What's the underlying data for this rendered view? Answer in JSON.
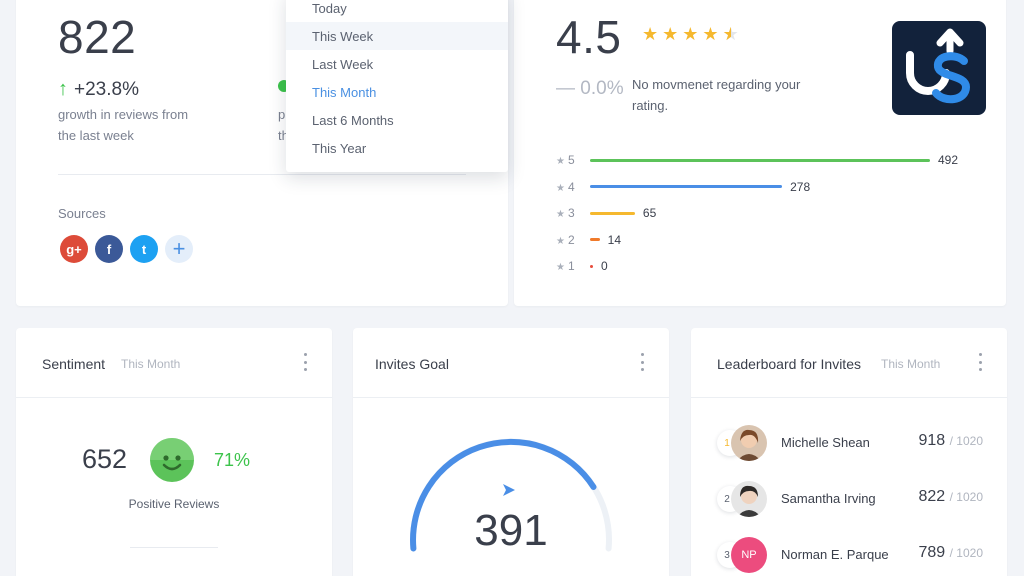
{
  "reviews": {
    "count": "822",
    "growth": "+23.8%",
    "growth_desc_line1": "growth in reviews from",
    "growth_desc_line2": "the last week",
    "sources_label": "Sources",
    "sources": [
      {
        "name": "google-plus",
        "glyph": "g+",
        "color": "#dd4b39"
      },
      {
        "name": "facebook",
        "glyph": "f",
        "color": "#3b5998"
      },
      {
        "name": "twitter",
        "glyph": "t",
        "color": "#1da1f2"
      }
    ],
    "add_source": "+"
  },
  "period_dropdown": {
    "options": [
      "Today",
      "This Week",
      "Last Week",
      "This Month",
      "Last 6 Months",
      "This Year"
    ],
    "hovered": "This Week",
    "selected": "This Month"
  },
  "rating": {
    "value": "4.5",
    "stars": 4.5,
    "change": "— 0.0%",
    "desc_line1": "No movmenet regarding your",
    "desc_line2": "rating.",
    "breakdown": [
      {
        "stars": "5",
        "count": "492",
        "value": 492,
        "color": "#5cc35a"
      },
      {
        "stars": "4",
        "count": "278",
        "value": 278,
        "color": "#4a8ee6"
      },
      {
        "stars": "3",
        "count": "65",
        "value": 65,
        "color": "#f5b82e"
      },
      {
        "stars": "2",
        "count": "14",
        "value": 14,
        "color": "#f07a2b"
      },
      {
        "stars": "1",
        "count": "0",
        "value": 0,
        "color": "#e74c3c"
      }
    ]
  },
  "sentiment": {
    "title": "Sentiment",
    "period": "This Month",
    "positive_count": "652",
    "positive_percent": "71%",
    "label": "Positive Reviews"
  },
  "invites": {
    "title": "Invites Goal",
    "value": "391",
    "goal": 1000
  },
  "leaderboard": {
    "title": "Leaderboard for Invites",
    "period": "This Month",
    "rows": [
      {
        "rank": "1",
        "name": "Michelle Shean",
        "score": "918",
        "of": "/ 1020",
        "initials": ""
      },
      {
        "rank": "2",
        "name": "Samantha Irving",
        "score": "822",
        "of": "/ 1020",
        "initials": ""
      },
      {
        "rank": "3",
        "name": "Norman E. Parque",
        "score": "789",
        "of": "/ 1020",
        "initials": "NP"
      }
    ]
  },
  "colors": {
    "accent": "#4a90e2",
    "positive": "#3cc34b",
    "logo_bg": "#12223b"
  }
}
